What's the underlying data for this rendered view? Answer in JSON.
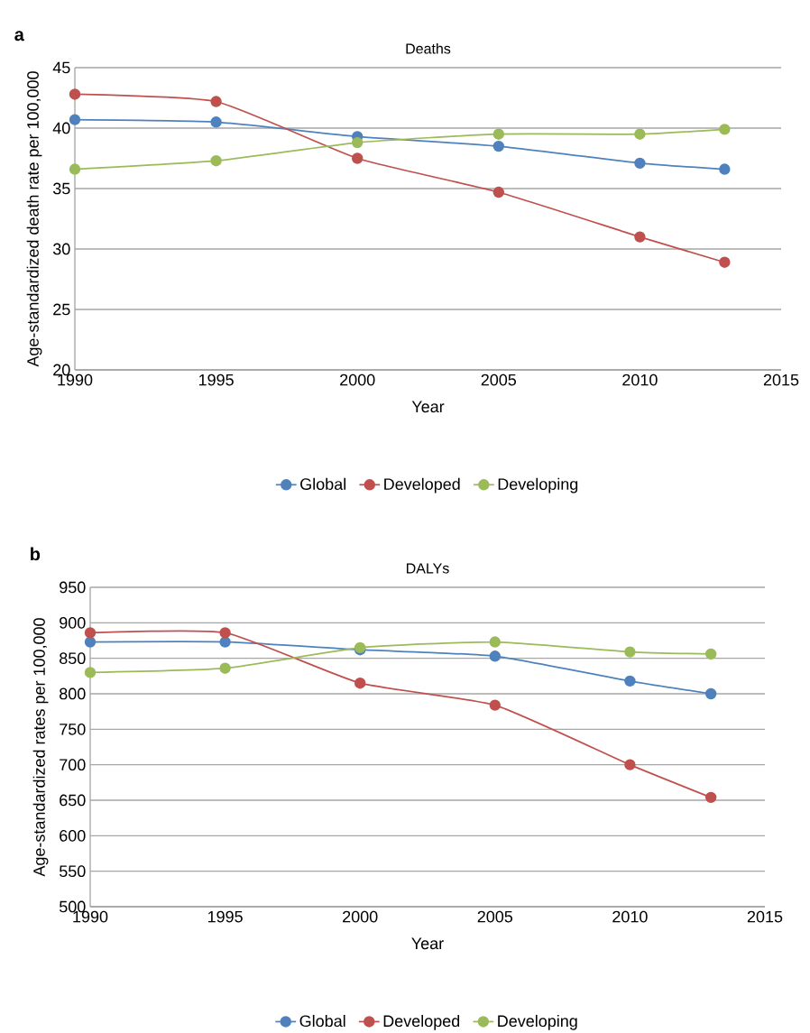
{
  "chart_data": [
    {
      "type": "line",
      "title": "Deaths",
      "xlabel": "Year",
      "ylabel": "Age-standardized death rate per 100,000",
      "annotations": [
        "a"
      ],
      "x": [
        1990,
        1995,
        2000,
        2005,
        2010,
        2013
      ],
      "series": [
        {
          "name": "Global",
          "color": "#4f81bd",
          "values": [
            40.7,
            40.5,
            39.3,
            38.5,
            37.1,
            36.6
          ]
        },
        {
          "name": "Developed",
          "color": "#c0504d",
          "values": [
            42.8,
            42.2,
            37.5,
            34.7,
            31.0,
            28.9
          ]
        },
        {
          "name": "Developing",
          "color": "#9bbb59",
          "values": [
            36.6,
            37.3,
            38.8,
            39.5,
            39.5,
            39.9
          ]
        }
      ],
      "xlim": [
        1990,
        2015
      ],
      "xticks": [
        1990,
        1995,
        2000,
        2005,
        2010,
        2015
      ],
      "ylim": [
        20,
        45
      ],
      "yticks": [
        20,
        25,
        30,
        35,
        40,
        45
      ],
      "grid": "y",
      "legend": "bottom",
      "marker": "circle",
      "line_style": "solid"
    },
    {
      "type": "line",
      "title": "DALYs",
      "xlabel": "Year",
      "ylabel": "Age-standardized rates per 100,000",
      "annotations": [
        "b"
      ],
      "x": [
        1990,
        1995,
        2000,
        2005,
        2010,
        2013
      ],
      "series": [
        {
          "name": "Global",
          "color": "#4f81bd",
          "values": [
            873,
            873,
            862,
            853,
            818,
            800
          ]
        },
        {
          "name": "Developed",
          "color": "#c0504d",
          "values": [
            886,
            886,
            815,
            784,
            700,
            654
          ]
        },
        {
          "name": "Developing",
          "color": "#9bbb59",
          "values": [
            830,
            836,
            865,
            873,
            859,
            856
          ]
        }
      ],
      "xlim": [
        1990,
        2015
      ],
      "xticks": [
        1990,
        1995,
        2000,
        2005,
        2010,
        2015
      ],
      "ylim": [
        500,
        950
      ],
      "yticks": [
        500,
        550,
        600,
        650,
        700,
        750,
        800,
        850,
        900,
        950
      ],
      "grid": "y",
      "legend": "bottom",
      "marker": "circle",
      "line_style": "solid"
    }
  ]
}
